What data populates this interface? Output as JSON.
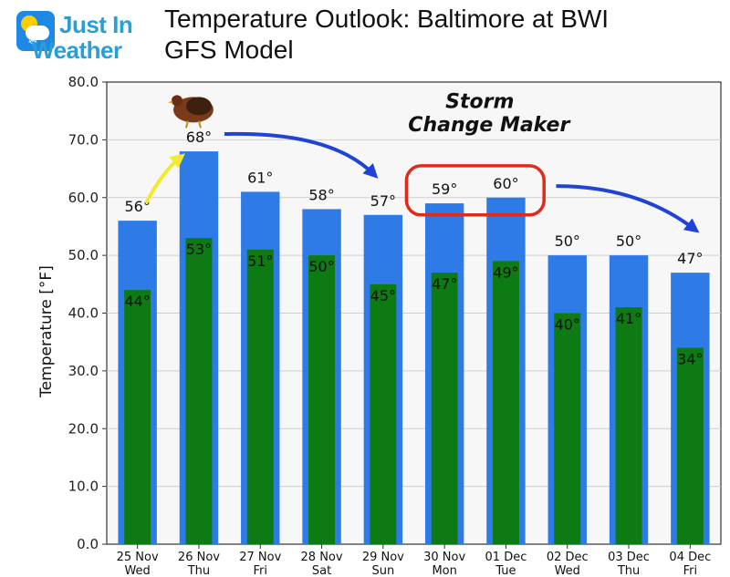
{
  "brand": {
    "line1": "Just In",
    "line2": "Weather"
  },
  "header": {
    "title_line1": "Temperature Outlook: Baltimore at BWI",
    "title_line2": "GFS Model"
  },
  "colors": {
    "high": "#2e7be8",
    "low": "#0d7a13",
    "arrow_blue": "#1f43d6",
    "arrow_yellow": "#f2ea2a",
    "highlight_box": "#e02a1c",
    "plot_bg": "#f7f7f7"
  },
  "annotation": {
    "line1": "Storm",
    "line2": "Change Maker"
  },
  "chart_data": {
    "type": "bar",
    "title": "Temperature Outlook: Baltimore at BWI",
    "ylabel": "Temperature [°F]",
    "ylim": [
      0,
      80
    ],
    "yticks": [
      "0.0",
      "10.0",
      "20.0",
      "30.0",
      "40.0",
      "50.0",
      "60.0",
      "70.0",
      "80.0"
    ],
    "grid": true,
    "categories": [
      {
        "date": "25 Nov",
        "day": "Wed"
      },
      {
        "date": "26 Nov",
        "day": "Thu"
      },
      {
        "date": "27 Nov",
        "day": "Fri"
      },
      {
        "date": "28 Nov",
        "day": "Sat"
      },
      {
        "date": "29 Nov",
        "day": "Sun"
      },
      {
        "date": "30 Nov",
        "day": "Mon"
      },
      {
        "date": "01 Dec",
        "day": "Tue"
      },
      {
        "date": "02 Dec",
        "day": "Wed"
      },
      {
        "date": "03 Dec",
        "day": "Thu"
      },
      {
        "date": "04 Dec",
        "day": "Fri"
      }
    ],
    "series": [
      {
        "values": [
          56,
          68,
          61,
          58,
          57,
          59,
          60,
          50,
          50,
          47
        ],
        "labels": [
          "56°",
          "68°",
          "61°",
          "58°",
          "57°",
          "59°",
          "60°",
          "50°",
          "50°",
          "47°"
        ]
      },
      {
        "values": [
          44,
          53,
          51,
          50,
          45,
          47,
          49,
          40,
          41,
          34
        ],
        "labels": [
          "44°",
          "53°",
          "51°",
          "50°",
          "45°",
          "47°",
          "49°",
          "40°",
          "41°",
          "34°"
        ]
      }
    ]
  }
}
